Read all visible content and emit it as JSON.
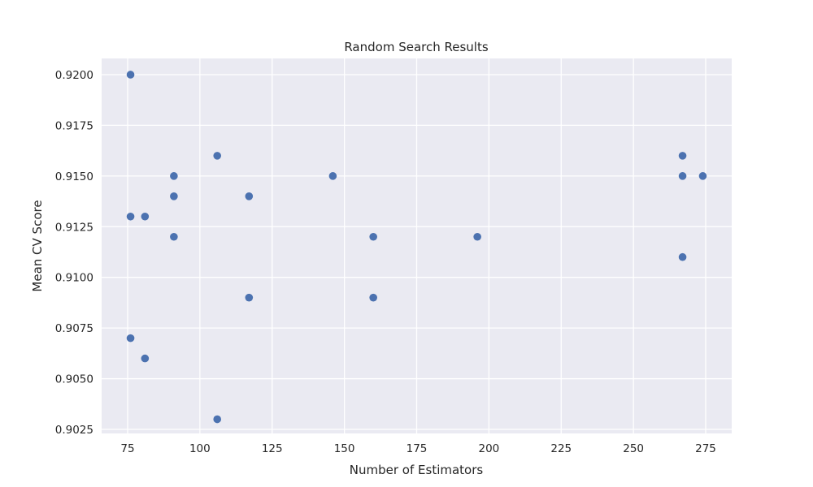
{
  "chart_data": {
    "type": "scatter",
    "title": "Random Search Results",
    "xlabel": "Number of Estimators",
    "ylabel": "Mean CV Score",
    "xlim": [
      66,
      284
    ],
    "ylim": [
      0.9023,
      0.9208
    ],
    "xticks": [
      75,
      100,
      125,
      150,
      175,
      200,
      225,
      250,
      275
    ],
    "xtick_labels": [
      "75",
      "100",
      "125",
      "150",
      "175",
      "200",
      "225",
      "250",
      "275"
    ],
    "yticks": [
      0.9025,
      0.905,
      0.9075,
      0.91,
      0.9125,
      0.915,
      0.9175,
      0.92
    ],
    "ytick_labels": [
      "0.9025",
      "0.9050",
      "0.9075",
      "0.9100",
      "0.9125",
      "0.9150",
      "0.9175",
      "0.9200"
    ],
    "grid": true,
    "colors": {
      "background": "#eaeaf2",
      "grid": "#ffffff",
      "points": "#4c72b0"
    },
    "points": [
      {
        "x": 76,
        "y": 0.92
      },
      {
        "x": 76,
        "y": 0.913
      },
      {
        "x": 76,
        "y": 0.907
      },
      {
        "x": 81,
        "y": 0.913
      },
      {
        "x": 81,
        "y": 0.906
      },
      {
        "x": 91,
        "y": 0.915
      },
      {
        "x": 91,
        "y": 0.914
      },
      {
        "x": 91,
        "y": 0.912
      },
      {
        "x": 106,
        "y": 0.916
      },
      {
        "x": 106,
        "y": 0.903
      },
      {
        "x": 117,
        "y": 0.914
      },
      {
        "x": 117,
        "y": 0.909
      },
      {
        "x": 146,
        "y": 0.915
      },
      {
        "x": 160,
        "y": 0.912
      },
      {
        "x": 160,
        "y": 0.909
      },
      {
        "x": 196,
        "y": 0.912
      },
      {
        "x": 267,
        "y": 0.916
      },
      {
        "x": 267,
        "y": 0.915
      },
      {
        "x": 267,
        "y": 0.911
      },
      {
        "x": 274,
        "y": 0.915
      }
    ]
  }
}
